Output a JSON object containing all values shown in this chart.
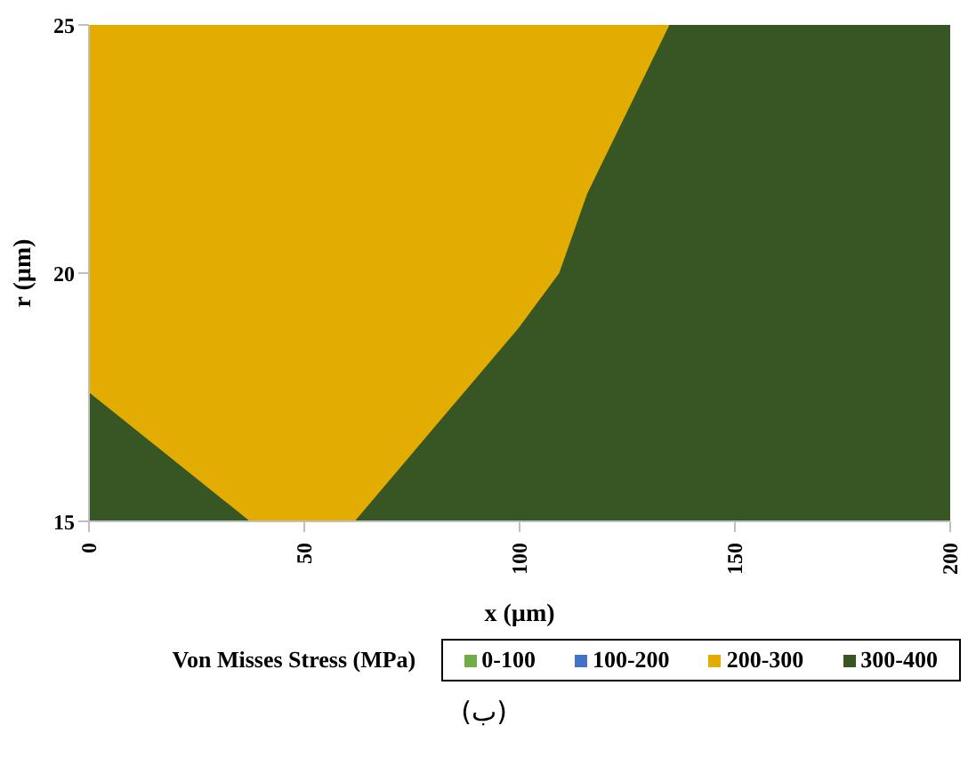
{
  "chart_data": {
    "type": "area",
    "xlabel": "x (µm)",
    "ylabel": "r (µm)",
    "legend_title": "Von Misses Stress (MPa)",
    "legend": "bottom",
    "xlim": [
      0,
      200
    ],
    "xticks": [
      0,
      50,
      100,
      150,
      200
    ],
    "ylim": [
      15,
      25
    ],
    "yticks": [
      15,
      20,
      25
    ],
    "series": [
      {
        "name": "0-100",
        "color": "#70ad47"
      },
      {
        "name": "100-200",
        "color": "#4472c4"
      },
      {
        "name": "200-300",
        "color": "#e2ac00",
        "x": [
          0,
          200
        ],
        "values": [
          25,
          25
        ]
      },
      {
        "name": "300-400",
        "color": "#375623",
        "x": [
          0,
          37.4,
          49,
          61.7,
          99.8,
          109.2,
          115.7,
          134.8,
          200
        ],
        "values": [
          17.6,
          15,
          null,
          15,
          18.9,
          20,
          21.6,
          25,
          25
        ]
      }
    ],
    "annotations": [
      "(ب)"
    ]
  }
}
